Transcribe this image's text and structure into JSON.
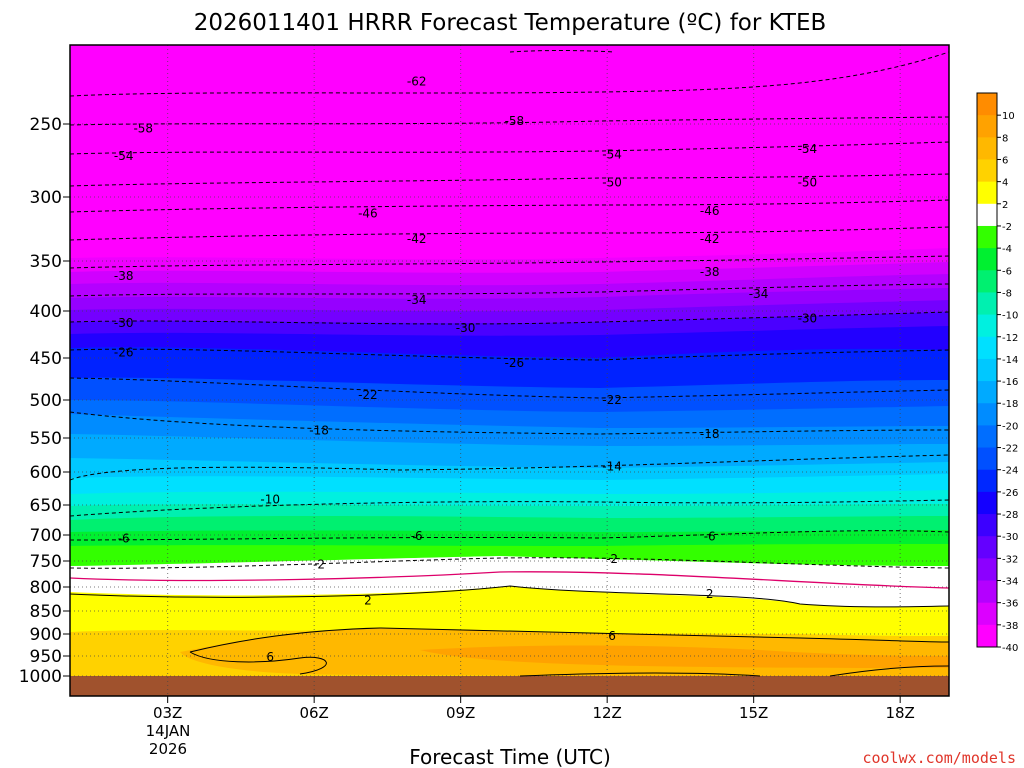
{
  "chart_data": {
    "type": "heatmap",
    "title": "2026011401 HRRR Forecast Temperature (ºC) for KTEB",
    "xlabel": "Forecast Time (UTC)",
    "ylabel": "",
    "x_ticks": [
      "03Z",
      "06Z",
      "09Z",
      "12Z",
      "15Z",
      "18Z"
    ],
    "x_date_label": [
      "14JAN",
      "2026"
    ],
    "x_range_hours": [
      1,
      19
    ],
    "y_axis": "pressure (hPa), reversed",
    "y_ticks": [
      "250",
      "300",
      "350",
      "400",
      "450",
      "500",
      "550",
      "600",
      "650",
      "700",
      "750",
      "800",
      "850",
      "900",
      "950",
      "1000"
    ],
    "y_range": [
      1030,
      200
    ],
    "colorbar": {
      "ticks": [
        "10",
        "8",
        "6",
        "4",
        "2",
        "-2",
        "-4",
        "-6",
        "-8",
        "-10",
        "-12",
        "-14",
        "-16",
        "-18",
        "-20",
        "-22",
        "-24",
        "-26",
        "-28",
        "-30",
        "-32",
        "-34",
        "-36",
        "-38",
        "-40"
      ],
      "bands": [
        {
          "range": [
            10,
            12
          ],
          "color": "#ff8c00"
        },
        {
          "range": [
            8,
            10
          ],
          "color": "#ffa200"
        },
        {
          "range": [
            6,
            8
          ],
          "color": "#ffb800"
        },
        {
          "range": [
            4,
            6
          ],
          "color": "#ffd200"
        },
        {
          "range": [
            2,
            4
          ],
          "color": "#ffff00"
        },
        {
          "range": [
            -2,
            2
          ],
          "color": "#ffffff"
        },
        {
          "range": [
            -4,
            -2
          ],
          "color": "#33ff00"
        },
        {
          "range": [
            -6,
            -4
          ],
          "color": "#00f030"
        },
        {
          "range": [
            -8,
            -6
          ],
          "color": "#00f070"
        },
        {
          "range": [
            -10,
            -8
          ],
          "color": "#00f0b0"
        },
        {
          "range": [
            -12,
            -10
          ],
          "color": "#00f0e0"
        },
        {
          "range": [
            -14,
            -12
          ],
          "color": "#00e0ff"
        },
        {
          "range": [
            -16,
            -14
          ],
          "color": "#00c8ff"
        },
        {
          "range": [
            -18,
            -16
          ],
          "color": "#00aaff"
        },
        {
          "range": [
            -20,
            -18
          ],
          "color": "#008cff"
        },
        {
          "range": [
            -22,
            -20
          ],
          "color": "#006eff"
        },
        {
          "range": [
            -24,
            -22
          ],
          "color": "#0050ff"
        },
        {
          "range": [
            -26,
            -24
          ],
          "color": "#0028ff"
        },
        {
          "range": [
            -28,
            -26
          ],
          "color": "#1400ff"
        },
        {
          "range": [
            -30,
            -28
          ],
          "color": "#3c00ff"
        },
        {
          "range": [
            -32,
            -30
          ],
          "color": "#6400ff"
        },
        {
          "range": [
            -34,
            -32
          ],
          "color": "#8c00ff"
        },
        {
          "range": [
            -36,
            -34
          ],
          "color": "#b400ff"
        },
        {
          "range": [
            -38,
            -36
          ],
          "color": "#dc00ff"
        },
        {
          "range": [
            -40,
            -38
          ],
          "color": "#ff00ff"
        }
      ]
    },
    "contour_labels": [
      {
        "text": "-62",
        "hour": 8.1,
        "p": 223
      },
      {
        "text": "-58",
        "hour": 2.5,
        "p": 253
      },
      {
        "text": "-58",
        "hour": 10.1,
        "p": 248
      },
      {
        "text": "-54",
        "hour": 2.1,
        "p": 272
      },
      {
        "text": "-54",
        "hour": 12.1,
        "p": 271
      },
      {
        "text": "-54",
        "hour": 16.1,
        "p": 267
      },
      {
        "text": "-50",
        "hour": 12.1,
        "p": 290
      },
      {
        "text": "-50",
        "hour": 16.1,
        "p": 290
      },
      {
        "text": "-46",
        "hour": 7.1,
        "p": 313
      },
      {
        "text": "-46",
        "hour": 14.1,
        "p": 311
      },
      {
        "text": "-42",
        "hour": 8.1,
        "p": 333
      },
      {
        "text": "-42",
        "hour": 14.1,
        "p": 333
      },
      {
        "text": "-38",
        "hour": 2.1,
        "p": 365
      },
      {
        "text": "-38",
        "hour": 14.1,
        "p": 361
      },
      {
        "text": "-34",
        "hour": 8.1,
        "p": 389
      },
      {
        "text": "-34",
        "hour": 15.1,
        "p": 383
      },
      {
        "text": "-30",
        "hour": 2.1,
        "p": 413
      },
      {
        "text": "-30",
        "hour": 9.1,
        "p": 418
      },
      {
        "text": "-30",
        "hour": 16.1,
        "p": 408
      },
      {
        "text": "-26",
        "hour": 2.1,
        "p": 444
      },
      {
        "text": "-26",
        "hour": 10.1,
        "p": 456
      },
      {
        "text": "-22",
        "hour": 7.1,
        "p": 494
      },
      {
        "text": "-22",
        "hour": 12.1,
        "p": 500
      },
      {
        "text": "-18",
        "hour": 6.1,
        "p": 540
      },
      {
        "text": "-18",
        "hour": 14.1,
        "p": 545
      },
      {
        "text": "-14",
        "hour": 12.1,
        "p": 592
      },
      {
        "text": "-10",
        "hour": 5.1,
        "p": 642
      },
      {
        "text": "-6",
        "hour": 2.1,
        "p": 707
      },
      {
        "text": "-6",
        "hour": 8.1,
        "p": 702
      },
      {
        "text": "-6",
        "hour": 14.1,
        "p": 703
      },
      {
        "text": "-2",
        "hour": 6.1,
        "p": 757
      },
      {
        "text": "-2",
        "hour": 12.1,
        "p": 746
      },
      {
        "text": "2",
        "hour": 7.1,
        "p": 828
      },
      {
        "text": "2",
        "hour": 14.1,
        "p": 815
      },
      {
        "text": "6",
        "hour": 5.1,
        "p": 952
      },
      {
        "text": "6",
        "hour": 12.1,
        "p": 905
      }
    ],
    "grid": true
  },
  "credit": "coolwx.com/models"
}
